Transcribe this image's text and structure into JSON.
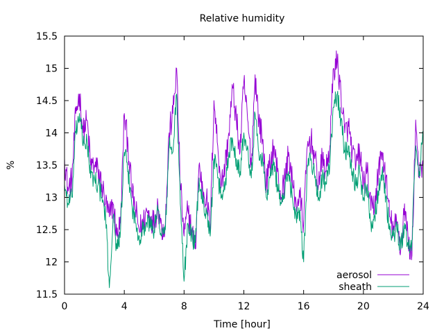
{
  "chart_data": {
    "type": "line",
    "title": "Relative humidity",
    "xlabel": "Time [hour]",
    "ylabel": "%",
    "xlim": [
      0,
      24
    ],
    "ylim": [
      11.5,
      15.5
    ],
    "xticks": [
      0,
      4,
      8,
      12,
      16,
      20,
      24
    ],
    "yticks": [
      11.5,
      12,
      12.5,
      13,
      13.5,
      14,
      14.5,
      15,
      15.5
    ],
    "xtick_labels": [
      "0",
      "4",
      "8",
      "12",
      "16",
      "20",
      "24"
    ],
    "ytick_labels": [
      "11.5",
      "12",
      "12.5",
      "13",
      "13.5",
      "14",
      "14.5",
      "15",
      "15.5"
    ],
    "grid": false,
    "legend_position": "bottom-right",
    "series": [
      {
        "name": "aerosol",
        "color": "#9400d3",
        "x": [
          0,
          0.25,
          0.5,
          0.75,
          1.0,
          1.25,
          1.5,
          1.75,
          2.0,
          2.25,
          2.5,
          2.75,
          3.0,
          3.25,
          3.5,
          3.75,
          4.0,
          4.25,
          4.5,
          4.75,
          5.0,
          5.25,
          5.5,
          5.75,
          6.0,
          6.25,
          6.5,
          6.75,
          7.0,
          7.25,
          7.5,
          7.75,
          8.0,
          8.25,
          8.5,
          8.75,
          9.0,
          9.25,
          9.5,
          9.75,
          10.0,
          10.25,
          10.5,
          10.75,
          11.0,
          11.25,
          11.5,
          11.75,
          12.0,
          12.25,
          12.5,
          12.75,
          13.0,
          13.25,
          13.5,
          13.75,
          14.0,
          14.25,
          14.5,
          14.75,
          15.0,
          15.25,
          15.5,
          15.75,
          16.0,
          16.25,
          16.5,
          16.75,
          17.0,
          17.25,
          17.5,
          17.75,
          18.0,
          18.25,
          18.5,
          18.75,
          19.0,
          19.25,
          19.5,
          19.75,
          20.0,
          20.25,
          20.5,
          20.75,
          21.0,
          21.25,
          21.5,
          21.75,
          22.0,
          22.25,
          22.5,
          22.75,
          23.0,
          23.25,
          23.5,
          23.75,
          24.0
        ],
        "y": [
          13.6,
          13.1,
          13.3,
          14.3,
          14.6,
          14.0,
          14.2,
          13.5,
          13.5,
          13.4,
          13.2,
          12.9,
          12.7,
          12.9,
          12.4,
          12.6,
          14.3,
          13.8,
          13.1,
          12.8,
          12.5,
          12.6,
          12.8,
          12.7,
          12.6,
          12.9,
          12.5,
          12.6,
          14.0,
          14.3,
          15.0,
          13.2,
          12.4,
          12.8,
          12.5,
          12.2,
          13.5,
          13.1,
          13.0,
          12.5,
          14.5,
          13.8,
          13.2,
          13.5,
          14.0,
          14.7,
          14.2,
          13.7,
          14.8,
          14.2,
          13.5,
          14.9,
          14.2,
          13.9,
          13.2,
          13.5,
          13.8,
          13.4,
          13.0,
          13.3,
          13.7,
          13.2,
          12.9,
          13.0,
          12.6,
          13.8,
          13.9,
          13.6,
          13.2,
          13.6,
          13.4,
          13.8,
          15.0,
          15.1,
          14.6,
          14.0,
          14.1,
          13.7,
          13.5,
          13.7,
          13.2,
          13.4,
          12.8,
          12.9,
          13.4,
          13.7,
          13.3,
          12.7,
          12.5,
          12.6,
          12.2,
          12.9,
          12.3,
          12.1,
          14.2,
          13.3,
          13.5
        ],
        "noise": 0.22
      },
      {
        "name": "sheath",
        "color": "#009e73",
        "x": [
          0,
          0.25,
          0.5,
          0.75,
          1.0,
          1.25,
          1.5,
          1.75,
          2.0,
          2.25,
          2.5,
          2.75,
          3.0,
          3.25,
          3.5,
          3.75,
          4.0,
          4.25,
          4.5,
          4.75,
          5.0,
          5.25,
          5.5,
          5.75,
          6.0,
          6.25,
          6.5,
          6.75,
          7.0,
          7.25,
          7.5,
          7.75,
          8.0,
          8.25,
          8.5,
          8.75,
          9.0,
          9.25,
          9.5,
          9.75,
          10.0,
          10.25,
          10.5,
          10.75,
          11.0,
          11.25,
          11.5,
          11.75,
          12.0,
          12.25,
          12.5,
          12.75,
          13.0,
          13.25,
          13.5,
          13.75,
          14.0,
          14.25,
          14.5,
          14.75,
          15.0,
          15.25,
          15.5,
          15.75,
          16.0,
          16.25,
          16.5,
          16.75,
          17.0,
          17.25,
          17.5,
          17.75,
          18.0,
          18.25,
          18.5,
          18.75,
          19.0,
          19.25,
          19.5,
          19.75,
          20.0,
          20.25,
          20.5,
          20.75,
          21.0,
          21.25,
          21.5,
          21.75,
          22.0,
          22.25,
          22.5,
          22.75,
          23.0,
          23.25,
          23.5,
          23.75,
          24.0
        ],
        "y": [
          13.2,
          12.9,
          13.0,
          14.0,
          14.3,
          13.8,
          13.9,
          13.3,
          13.3,
          13.2,
          13.0,
          12.7,
          11.6,
          12.7,
          12.2,
          12.5,
          13.7,
          13.4,
          12.9,
          12.6,
          12.4,
          12.5,
          12.6,
          12.6,
          12.5,
          12.8,
          12.4,
          12.5,
          13.8,
          13.7,
          14.6,
          12.9,
          11.7,
          12.6,
          12.4,
          12.3,
          13.3,
          12.9,
          12.8,
          12.4,
          13.6,
          13.3,
          13.0,
          13.2,
          13.7,
          13.9,
          13.6,
          13.4,
          14.0,
          13.8,
          13.3,
          14.3,
          13.7,
          13.6,
          13.0,
          13.3,
          13.5,
          13.2,
          12.9,
          13.1,
          13.4,
          13.0,
          12.7,
          12.8,
          12.0,
          13.5,
          13.6,
          13.3,
          13.0,
          13.3,
          13.2,
          13.5,
          14.4,
          14.6,
          14.2,
          13.7,
          13.8,
          13.4,
          13.2,
          13.4,
          13.0,
          13.2,
          12.6,
          12.7,
          13.1,
          13.4,
          13.0,
          12.5,
          12.4,
          12.5,
          12.2,
          12.6,
          12.2,
          12.3,
          13.8,
          13.4,
          14.0
        ],
        "noise": 0.16
      }
    ]
  }
}
